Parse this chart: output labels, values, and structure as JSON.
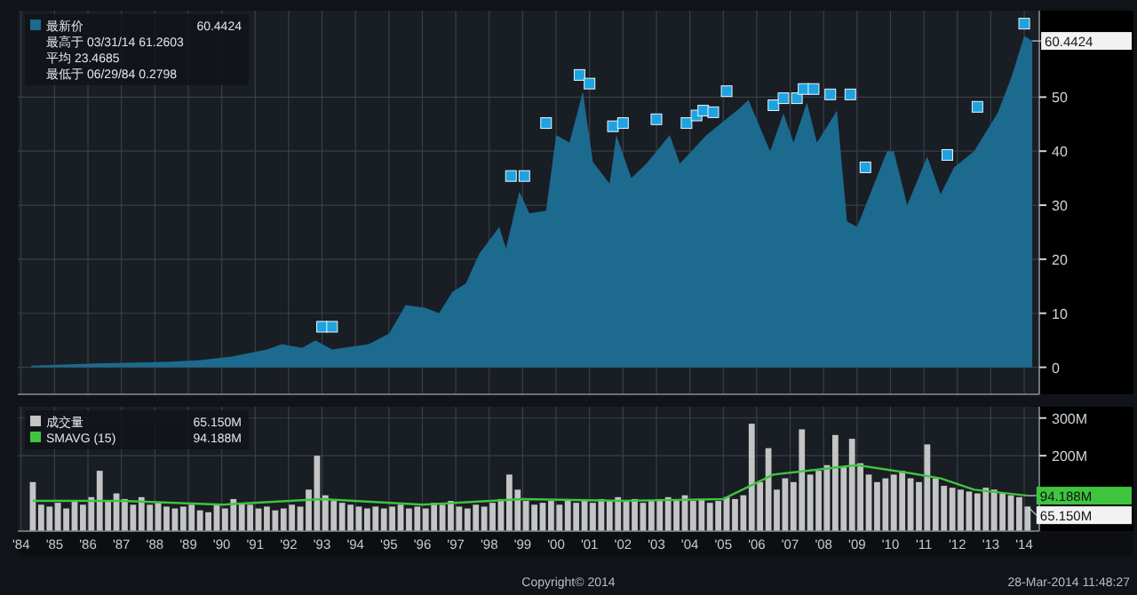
{
  "chart_data": [
    {
      "type": "area",
      "xlim": [
        1983.9,
        2014.45
      ],
      "ylim": [
        -5,
        66
      ],
      "xticks": [
        1984,
        1985,
        1986,
        1987,
        1988,
        1989,
        1990,
        1991,
        1992,
        1993,
        1994,
        1995,
        1996,
        1997,
        1998,
        1999,
        2000,
        2001,
        2002,
        2003,
        2004,
        2005,
        2006,
        2007,
        2008,
        2009,
        2010,
        2011,
        2012,
        2013,
        2014
      ],
      "yticks": [
        0,
        10,
        20,
        30,
        40,
        50
      ],
      "tick_labels": "y",
      "grid": true,
      "legend": "top left",
      "series": [
        {
          "name": "最新价",
          "color": "#1c6a8e",
          "x": [
            1984.3,
            1986.2,
            1988.3,
            1989.3,
            1990.3,
            1991.35,
            1991.8,
            1992.4,
            1992.8,
            1993.3,
            1994.4,
            1995.0,
            1995.5,
            1996.1,
            1996.5,
            1996.9,
            1997.3,
            1997.7,
            1998.3,
            1998.5,
            1998.9,
            1999.2,
            1999.7,
            2000.0,
            2000.4,
            2000.8,
            2001.1,
            2001.6,
            2001.8,
            2002.25,
            2002.7,
            2003.4,
            2003.7,
            2004.5,
            2004.9,
            2005.5,
            2005.75,
            2006.4,
            2006.8,
            2007.1,
            2007.5,
            2007.8,
            2008.4,
            2008.7,
            2009.0,
            2009.9,
            2010.1,
            2010.5,
            2011.1,
            2011.5,
            2011.9,
            2012.5,
            2013.2,
            2013.6,
            2014.0,
            2014.24
          ],
          "values": [
            0.3,
            0.7,
            1.0,
            1.3,
            2.0,
            3.3,
            4.3,
            3.6,
            5.0,
            3.3,
            4.3,
            6.2,
            11.5,
            11,
            10,
            14,
            15.5,
            21,
            26,
            22,
            32.5,
            28.5,
            29,
            43,
            41.6,
            51,
            38,
            34,
            43,
            35,
            37.7,
            43,
            37.7,
            43,
            45,
            48,
            49.5,
            40,
            47,
            41.6,
            49,
            41.6,
            47.5,
            27,
            26,
            40,
            40,
            30,
            39,
            32,
            37,
            40,
            47,
            53.4,
            61.3,
            60.4
          ]
        },
        {
          "type": "scatter",
          "marker": "square",
          "color": "#1fa3e0",
          "x": [
            1993.0,
            1993.3,
            1998.65,
            1999.05,
            1999.7,
            2000.7,
            2001.0,
            2001.7,
            2002.0,
            2003.0,
            2003.9,
            2004.2,
            2004.4,
            2004.7,
            2005.1,
            2006.5,
            2006.8,
            2007.2,
            2007.4,
            2007.7,
            2008.2,
            2008.8,
            2009.25,
            2011.7,
            2012.6,
            2014.0
          ],
          "values": [
            7.5,
            7.5,
            35.4,
            35.4,
            45.2,
            54.1,
            52.5,
            44.6,
            45.2,
            45.9,
            45.2,
            46.6,
            47.5,
            47.2,
            51.1,
            48.5,
            49.8,
            49.8,
            51.5,
            51.5,
            50.5,
            50.5,
            37.0,
            39.3,
            48.2,
            63.6
          ]
        }
      ],
      "annotations": [
        "60.4424",
        "最高于 03/31/14 61.2603",
        "平均 23.4685",
        "最低于 06/29/84 0.2798"
      ]
    },
    {
      "type": "bar",
      "xlim": [
        1983.9,
        2014.45
      ],
      "ylim": [
        0,
        330
      ],
      "xticks": [
        {
          "value": 1984,
          "label": "'84"
        },
        {
          "value": 1985,
          "label": "'85"
        },
        {
          "value": 1986,
          "label": "'86"
        },
        {
          "value": 1987,
          "label": "'87"
        },
        {
          "value": 1988,
          "label": "'88"
        },
        {
          "value": 1989,
          "label": "'89"
        },
        {
          "value": 1990,
          "label": "'90"
        },
        {
          "value": 1991,
          "label": "'91"
        },
        {
          "value": 1992,
          "label": "'92"
        },
        {
          "value": 1993,
          "label": "'93"
        },
        {
          "value": 1994,
          "label": "'94"
        },
        {
          "value": 1995,
          "label": "'95"
        },
        {
          "value": 1996,
          "label": "'96"
        },
        {
          "value": 1997,
          "label": "'97"
        },
        {
          "value": 1998,
          "label": "'98"
        },
        {
          "value": 1999,
          "label": "'99"
        },
        {
          "value": 2000,
          "label": "'00"
        },
        {
          "value": 2001,
          "label": "'01"
        },
        {
          "value": 2002,
          "label": "'02"
        },
        {
          "value": 2003,
          "label": "'03"
        },
        {
          "value": 2004,
          "label": "'04"
        },
        {
          "value": 2005,
          "label": "'05"
        },
        {
          "value": 2006,
          "label": "'06"
        },
        {
          "value": 2007,
          "label": "'07"
        },
        {
          "value": 2008,
          "label": "'08"
        },
        {
          "value": 2009,
          "label": "'09"
        },
        {
          "value": 2010,
          "label": "'10"
        },
        {
          "value": 2011,
          "label": "'11"
        },
        {
          "value": 2012,
          "label": "'12"
        },
        {
          "value": 2013,
          "label": "'13"
        },
        {
          "value": 2014,
          "label": "'14"
        }
      ],
      "yticks": [
        {
          "value": 200,
          "label": "200M"
        },
        {
          "value": 300,
          "label": "300M"
        }
      ],
      "grid": true,
      "legend": "top left",
      "series": [
        {
          "name": "成交量",
          "color": "#c4c4c4",
          "x": [
            1984.35,
            1984.6,
            1984.85,
            1985.1,
            1985.35,
            1985.6,
            1985.85,
            1986.1,
            1986.35,
            1986.6,
            1986.85,
            1987.1,
            1987.35,
            1987.6,
            1987.85,
            1988.1,
            1988.35,
            1988.6,
            1988.85,
            1989.1,
            1989.35,
            1989.6,
            1989.85,
            1990.1,
            1990.35,
            1990.6,
            1990.85,
            1991.1,
            1991.35,
            1991.6,
            1991.85,
            1992.1,
            1992.35,
            1992.6,
            1992.85,
            1993.1,
            1993.35,
            1993.6,
            1993.85,
            1994.1,
            1994.35,
            1994.6,
            1994.85,
            1995.1,
            1995.35,
            1995.6,
            1995.85,
            1996.1,
            1996.35,
            1996.6,
            1996.85,
            1997.1,
            1997.35,
            1997.6,
            1997.85,
            1998.1,
            1998.35,
            1998.6,
            1998.85,
            1999.1,
            1999.35,
            1999.6,
            1999.85,
            2000.1,
            2000.35,
            2000.6,
            2000.85,
            2001.1,
            2001.35,
            2001.6,
            2001.85,
            2002.1,
            2002.35,
            2002.6,
            2002.85,
            2003.1,
            2003.35,
            2003.6,
            2003.85,
            2004.1,
            2004.35,
            2004.6,
            2004.85,
            2005.1,
            2005.35,
            2005.6,
            2005.85,
            2006.1,
            2006.35,
            2006.6,
            2006.85,
            2007.1,
            2007.35,
            2007.6,
            2007.85,
            2008.1,
            2008.35,
            2008.6,
            2008.85,
            2009.1,
            2009.35,
            2009.6,
            2009.85,
            2010.1,
            2010.35,
            2010.6,
            2010.85,
            2011.1,
            2011.35,
            2011.6,
            2011.85,
            2012.1,
            2012.35,
            2012.6,
            2012.85,
            2013.1,
            2013.35,
            2013.6,
            2013.85,
            2014.1
          ],
          "values": [
            130,
            70,
            65,
            75,
            60,
            80,
            70,
            90,
            160,
            80,
            100,
            85,
            70,
            90,
            70,
            75,
            65,
            60,
            65,
            70,
            55,
            50,
            70,
            60,
            85,
            75,
            70,
            60,
            65,
            55,
            60,
            70,
            65,
            110,
            200,
            95,
            80,
            75,
            70,
            65,
            60,
            65,
            60,
            65,
            70,
            60,
            65,
            60,
            75,
            70,
            80,
            65,
            60,
            70,
            65,
            75,
            85,
            150,
            110,
            80,
            70,
            75,
            80,
            70,
            85,
            75,
            80,
            75,
            85,
            80,
            90,
            80,
            85,
            75,
            80,
            85,
            90,
            80,
            95,
            80,
            85,
            75,
            80,
            90,
            85,
            95,
            285,
            130,
            220,
            110,
            140,
            130,
            270,
            150,
            160,
            175,
            255,
            170,
            245,
            180,
            150,
            130,
            140,
            150,
            160,
            140,
            130,
            230,
            140,
            120,
            115,
            110,
            105,
            100,
            115,
            110,
            100,
            95,
            90,
            65
          ]
        },
        {
          "name": "SMAVG (15)",
          "type": "line",
          "color": "#3fc43f",
          "x": [
            1984.35,
            1987,
            1990,
            1993,
            1996,
            1999,
            2002,
            2005,
            2006.5,
            2008,
            2009,
            2010.5,
            2011.5,
            2012.5,
            2014.1
          ],
          "values": [
            80,
            80,
            70,
            85,
            70,
            85,
            80,
            85,
            150,
            165,
            175,
            155,
            140,
            110,
            94
          ]
        }
      ],
      "annotations": [
        "65.150M",
        "94.188M",
        "Copyright© 2014",
        "28-Mar-2014 11:48:27"
      ]
    }
  ]
}
